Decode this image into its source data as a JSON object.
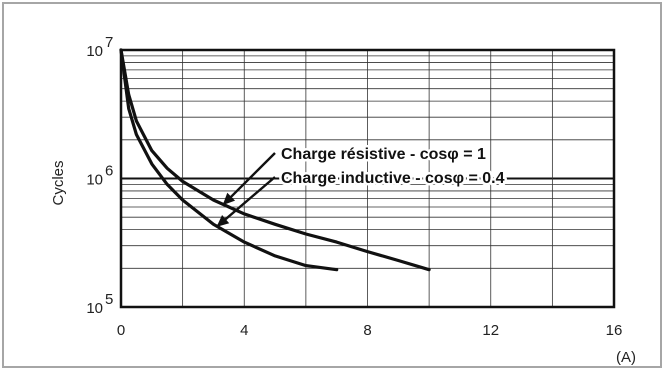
{
  "chart_data": {
    "type": "line",
    "ylabel": "Cycles",
    "xlabel": "(A)",
    "xlim": [
      0,
      16
    ],
    "ylim": [
      100000,
      10000000
    ],
    "yscale": "log",
    "grid": true,
    "x_ticks": [
      "0",
      "4",
      "8",
      "12",
      "16"
    ],
    "y_ticks": [
      {
        "value": 10000000,
        "base": "10",
        "exp": "7"
      },
      {
        "value": 1000000,
        "base": "10",
        "exp": "6"
      },
      {
        "value": 100000,
        "base": "10",
        "exp": "5"
      }
    ],
    "series": [
      {
        "x": [
          0,
          0.25,
          0.5,
          1,
          1.5,
          2,
          3,
          4,
          5,
          6,
          7,
          8,
          9,
          10
        ],
        "y": [
          10000000,
          4500000,
          2800000,
          1650000,
          1200000,
          950000,
          680000,
          530000,
          440000,
          370000,
          320000,
          270000,
          230000,
          195000
        ]
      },
      {
        "x": [
          0,
          0.25,
          0.5,
          1,
          1.5,
          2,
          3,
          4,
          5,
          6,
          7
        ],
        "y": [
          10000000,
          3500000,
          2200000,
          1300000,
          900000,
          680000,
          440000,
          320000,
          250000,
          210000,
          195000
        ]
      }
    ],
    "annotations": [
      {
        "text": "Charge résistive - cosφ = 1",
        "x": 3.3,
        "y": 620000
      },
      {
        "text": "Charge inductive - cosφ = 0.4",
        "x": 3.1,
        "y": 420000
      }
    ]
  }
}
